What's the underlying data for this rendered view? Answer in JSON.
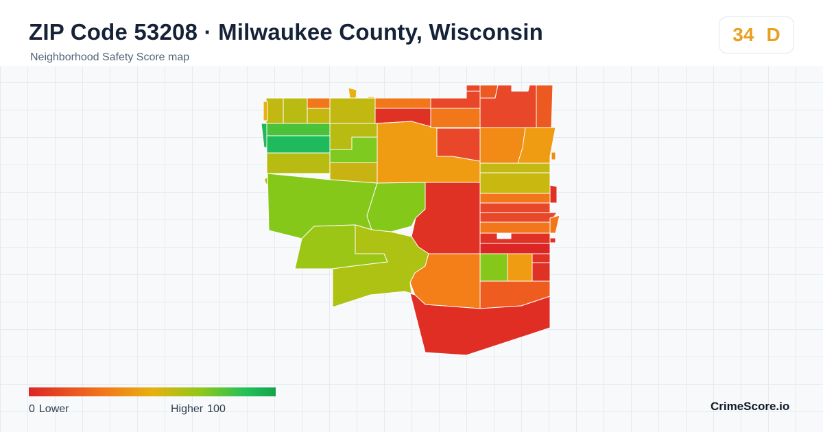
{
  "header": {
    "title": "ZIP Code 53208 · Milwaukee County, Wisconsin",
    "subtitle": "Neighborhood Safety Score map"
  },
  "score": {
    "value": "34",
    "grade": "D",
    "color": "#e8a020"
  },
  "legend": {
    "low_value": "0",
    "low_label": "Lower",
    "high_label": "Higher",
    "high_value": "100",
    "colors": [
      "#dc2626",
      "#f2761a",
      "#e8b010",
      "#8cc81a",
      "#22c05a",
      "#16a34a"
    ]
  },
  "brand": "CrimeScore.io"
}
